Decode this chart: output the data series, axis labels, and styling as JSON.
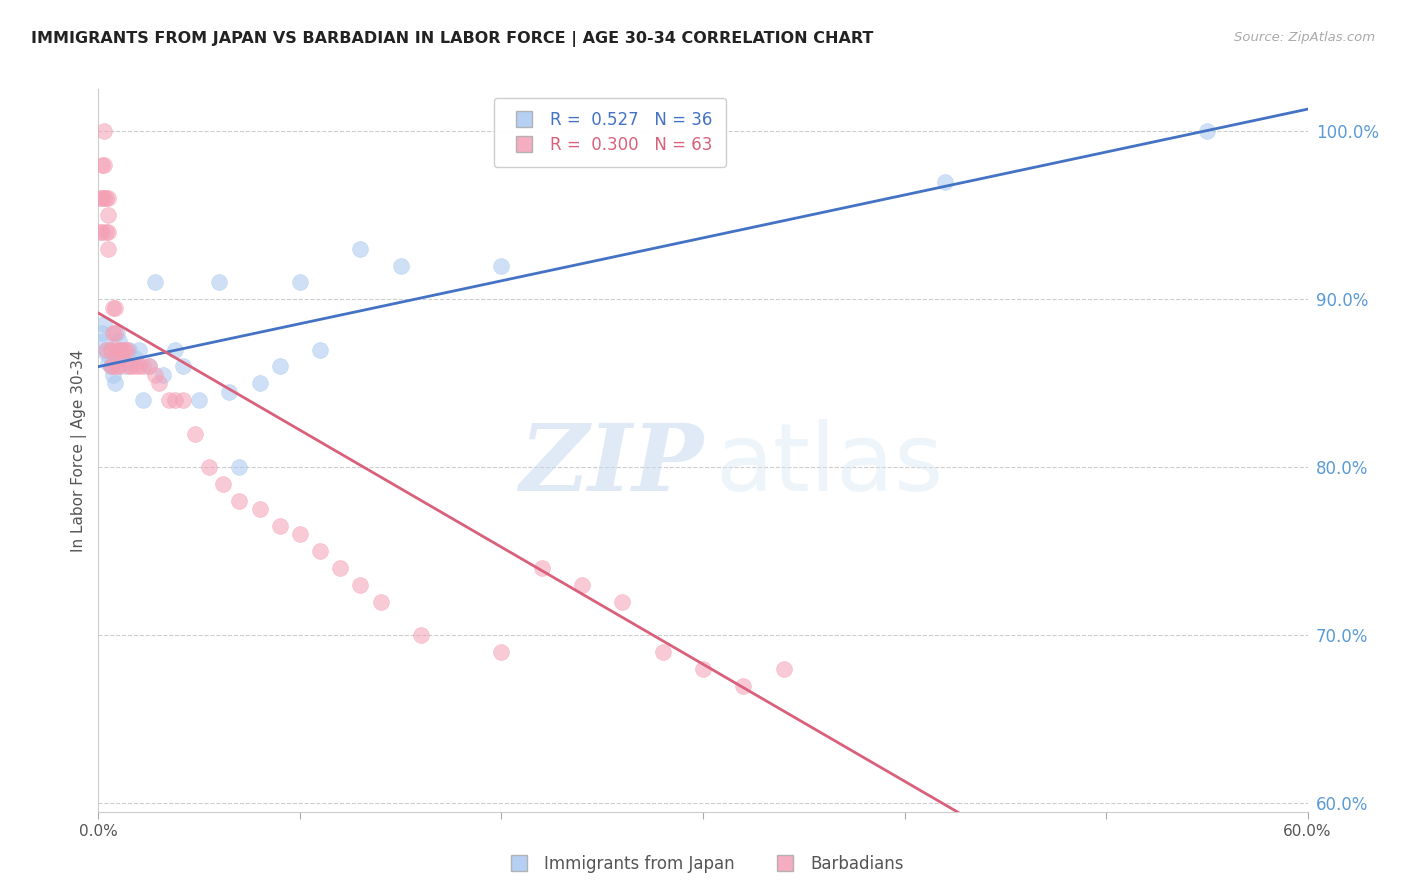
{
  "title": "IMMIGRANTS FROM JAPAN VS BARBADIAN IN LABOR FORCE | AGE 30-34 CORRELATION CHART",
  "source": "Source: ZipAtlas.com",
  "ylabel": "In Labor Force | Age 30-34",
  "xlim": [
    0.0,
    0.6
  ],
  "ylim": [
    0.595,
    1.025
  ],
  "yticks": [
    0.6,
    0.7,
    0.8,
    0.9,
    1.0
  ],
  "ytick_labels": [
    "60.0%",
    "70.0%",
    "80.0%",
    "90.0%",
    "100.0%"
  ],
  "xticks": [
    0.0,
    0.1,
    0.2,
    0.3,
    0.4,
    0.5,
    0.6
  ],
  "xtick_labels": [
    "0.0%",
    "",
    "",
    "",
    "",
    "",
    "60.0%"
  ],
  "japan_R": 0.527,
  "japan_N": 36,
  "barbadian_R": 0.3,
  "barbadian_N": 63,
  "japan_color": "#a8c8f0",
  "barbadian_color": "#f4a0b5",
  "japan_line_color": "#4472c4",
  "barbadian_line_color": "#d9607a",
  "legend_label_japan": "Immigrants from Japan",
  "legend_label_barbadian": "Barbadians",
  "watermark_zip": "ZIP",
  "watermark_atlas": "atlas",
  "japan_x": [
    0.002,
    0.003,
    0.003,
    0.004,
    0.004,
    0.005,
    0.006,
    0.007,
    0.008,
    0.009,
    0.01,
    0.011,
    0.012,
    0.013,
    0.015,
    0.018,
    0.02,
    0.022,
    0.025,
    0.028,
    0.032,
    0.038,
    0.042,
    0.05,
    0.06,
    0.065,
    0.07,
    0.08,
    0.09,
    0.1,
    0.11,
    0.13,
    0.15,
    0.2,
    0.42,
    0.55
  ],
  "japan_y": [
    0.88,
    0.885,
    0.875,
    0.87,
    0.868,
    0.862,
    0.86,
    0.855,
    0.85,
    0.88,
    0.875,
    0.865,
    0.862,
    0.86,
    0.87,
    0.865,
    0.87,
    0.84,
    0.86,
    0.91,
    0.855,
    0.87,
    0.86,
    0.84,
    0.91,
    0.845,
    0.8,
    0.85,
    0.86,
    0.91,
    0.87,
    0.93,
    0.92,
    0.92,
    0.97,
    1.0
  ],
  "barbadian_x": [
    0.001,
    0.001,
    0.002,
    0.002,
    0.002,
    0.003,
    0.003,
    0.003,
    0.004,
    0.004,
    0.004,
    0.005,
    0.005,
    0.005,
    0.005,
    0.006,
    0.006,
    0.006,
    0.007,
    0.007,
    0.007,
    0.008,
    0.008,
    0.009,
    0.009,
    0.01,
    0.01,
    0.011,
    0.012,
    0.013,
    0.014,
    0.015,
    0.016,
    0.018,
    0.02,
    0.022,
    0.025,
    0.028,
    0.03,
    0.035,
    0.038,
    0.042,
    0.048,
    0.055,
    0.062,
    0.07,
    0.08,
    0.09,
    0.1,
    0.11,
    0.12,
    0.13,
    0.14,
    0.16,
    0.2,
    0.22,
    0.24,
    0.26,
    0.28,
    0.3,
    0.32,
    0.34,
    0.28
  ],
  "barbadian_y": [
    0.96,
    0.94,
    0.98,
    0.96,
    0.94,
    1.0,
    0.98,
    0.96,
    0.96,
    0.94,
    0.87,
    0.96,
    0.95,
    0.94,
    0.93,
    0.87,
    0.87,
    0.86,
    0.895,
    0.88,
    0.86,
    0.895,
    0.88,
    0.87,
    0.86,
    0.87,
    0.86,
    0.87,
    0.87,
    0.87,
    0.87,
    0.86,
    0.86,
    0.86,
    0.86,
    0.86,
    0.86,
    0.855,
    0.85,
    0.84,
    0.84,
    0.84,
    0.82,
    0.8,
    0.79,
    0.78,
    0.775,
    0.765,
    0.76,
    0.75,
    0.74,
    0.73,
    0.72,
    0.7,
    0.69,
    0.74,
    0.73,
    0.72,
    1.0,
    0.68,
    0.67,
    0.68,
    0.69
  ]
}
